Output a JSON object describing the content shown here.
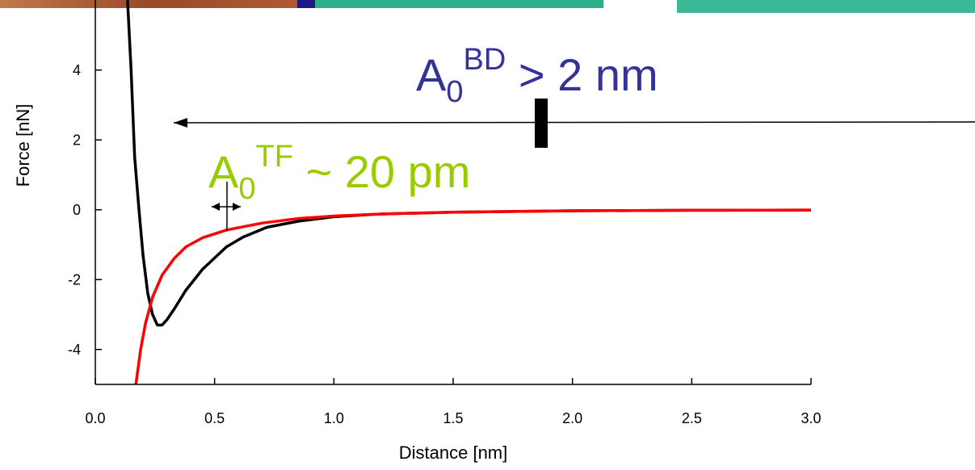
{
  "chart_data": {
    "type": "line",
    "xlabel": "Distance [nm]",
    "ylabel": "Force [nN]",
    "xlim": [
      0,
      3
    ],
    "ylim": [
      -5,
      6
    ],
    "xticks": [
      {
        "value": 0,
        "label": "0.0"
      },
      0.5,
      {
        "value": 1,
        "label": "1.0"
      },
      1.5,
      {
        "value": 2,
        "label": "2.0"
      },
      2.5,
      {
        "value": 3,
        "label": "3.0"
      }
    ],
    "yticks": [
      -4,
      -2,
      0,
      2,
      4
    ],
    "series": [
      {
        "color": "#000000",
        "x": [
          0.135,
          0.15,
          0.165,
          0.183,
          0.2,
          0.22,
          0.24,
          0.26,
          0.28,
          0.3,
          0.33,
          0.38,
          0.45,
          0.55,
          0.62,
          0.72,
          0.85,
          1.0,
          1.2,
          1.5,
          2.0,
          2.5,
          3.0
        ],
        "values": [
          6,
          4,
          1.5,
          0,
          -1.3,
          -2.4,
          -3.0,
          -3.3,
          -3.3,
          -3.15,
          -2.85,
          -2.3,
          -1.7,
          -1.06,
          -0.78,
          -0.5,
          -0.33,
          -0.2,
          -0.12,
          -0.07,
          -0.03,
          -0.015,
          -0.01
        ]
      },
      {
        "color": "#ff0000",
        "x": [
          0.17,
          0.19,
          0.21,
          0.24,
          0.28,
          0.33,
          0.38,
          0.45,
          0.55,
          0.7,
          0.85,
          1.0,
          1.2,
          1.5,
          2.0,
          2.5,
          3.0
        ],
        "values": [
          -5,
          -4,
          -3.26,
          -2.5,
          -1.87,
          -1.4,
          -1.06,
          -0.8,
          -0.58,
          -0.38,
          -0.25,
          -0.18,
          -0.12,
          -0.07,
          -0.03,
          -0.015,
          -0.01
        ]
      }
    ],
    "annotations": [
      {
        "parts": [
          "A",
          "0",
          "BD",
          " > 2 nm"
        ],
        "color": "#333399"
      },
      {
        "parts": [
          "A",
          "0",
          "TF",
          " ~ 20 pm"
        ],
        "color": "#99cc00"
      }
    ]
  }
}
